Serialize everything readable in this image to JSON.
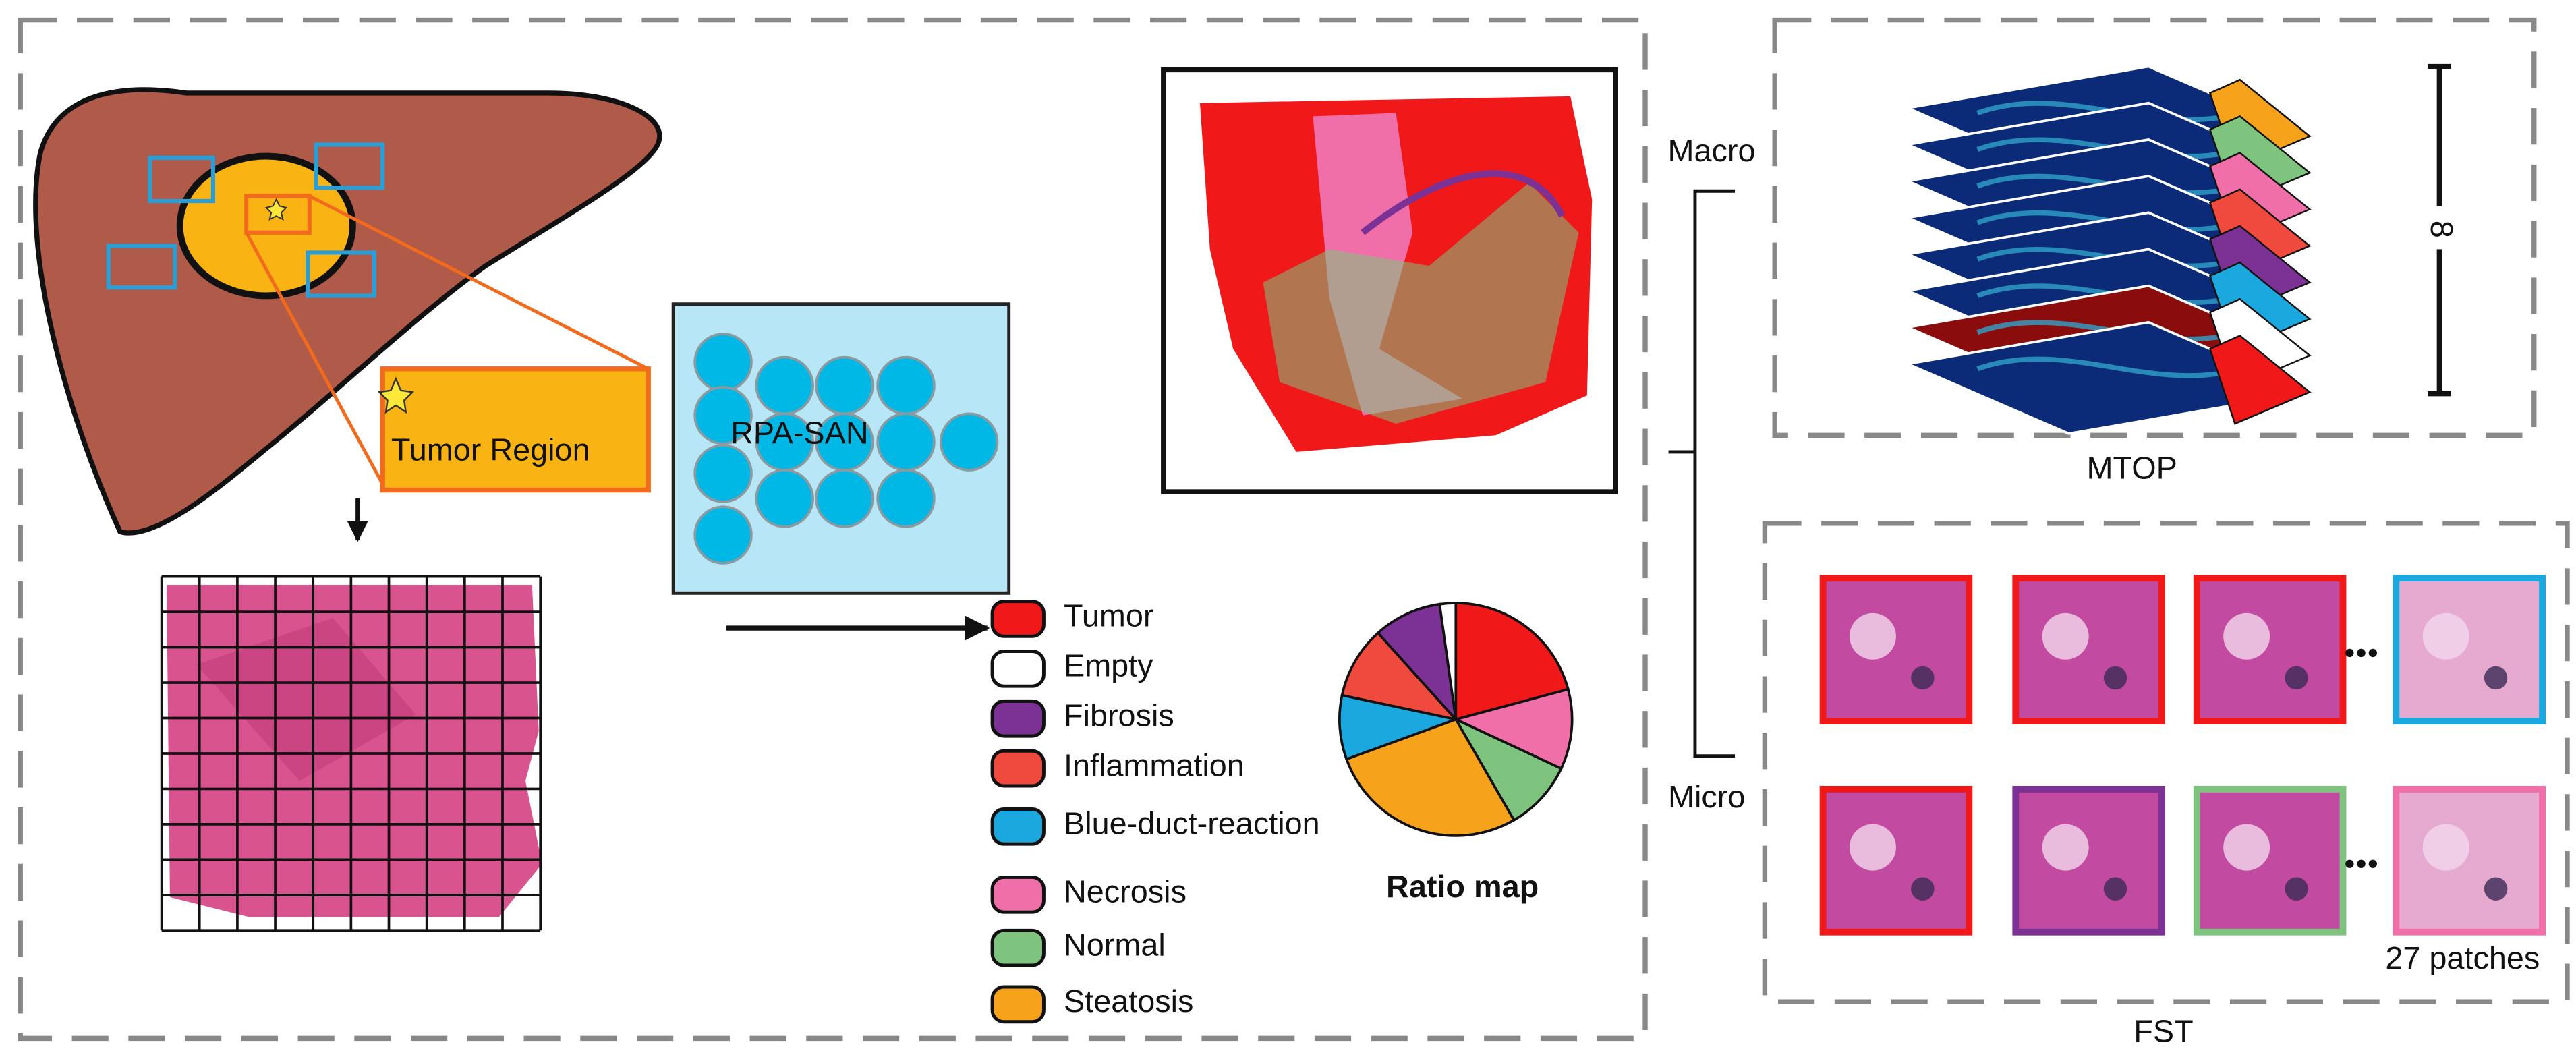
{
  "left_panel": {
    "callout": "Tumor Region",
    "model": "RPA-SAN",
    "legend": [
      {
        "label": "Tumor",
        "color": "#f01818"
      },
      {
        "label": "Empty",
        "color": "#ffffff"
      },
      {
        "label": "Fibrosis",
        "color": "#7b3294"
      },
      {
        "label": "Inflammation",
        "color": "#f04a3e"
      },
      {
        "label": "Blue-duct-reaction",
        "color": "#1aa8df"
      },
      {
        "label": "Necrosis",
        "color": "#f06fa8"
      },
      {
        "label": "Normal",
        "color": "#7ec47e"
      },
      {
        "label": "Steatosis",
        "color": "#f7a21b"
      }
    ],
    "pie_caption": "Ratio map"
  },
  "right_panel": {
    "macro": "Macro",
    "micro": "Micro",
    "mtop": {
      "title": "MTOP",
      "depth": "8"
    },
    "fst": {
      "title": "FST",
      "patch_count": "27 patches"
    }
  }
}
